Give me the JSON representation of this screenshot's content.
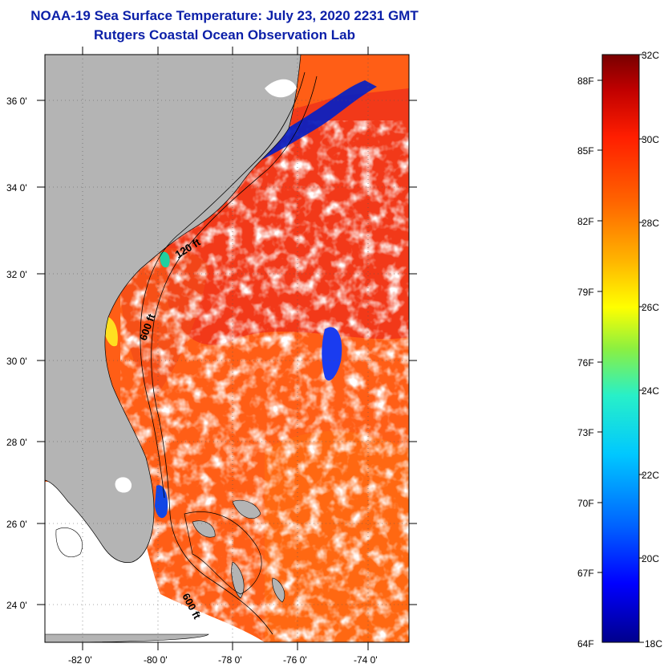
{
  "header": {
    "title": "NOAA-19 Sea Surface Temperature:  July 23, 2020 2231 GMT",
    "subtitle": "Rutgers Coastal Ocean Observation Lab"
  },
  "map": {
    "lat_labels": [
      "36 0'",
      "34 0'",
      "32 0'",
      "30 0'",
      "28 0'",
      "26 0'",
      "24 0'"
    ],
    "lon_labels": [
      "-82 0'",
      "-80 0'",
      "-78 0'",
      "-76 0'",
      "-74 0'"
    ],
    "isobath_labels": [
      "120 ft",
      "600 ft",
      "600 ft"
    ],
    "colors": {
      "land": "#b4b4b4",
      "ocean_warm": "#ff5a14",
      "ocean_hot": "#f0321a",
      "cloud": "#ffffff",
      "frame": "#000000"
    }
  },
  "colorbar": {
    "fahrenheit_labels": [
      "88F",
      "85F",
      "82F",
      "79F",
      "76F",
      "73F",
      "70F",
      "67F",
      "64F"
    ],
    "celsius_labels": [
      "32C",
      "30C",
      "28C",
      "26C",
      "24C",
      "22C",
      "20C",
      "18C"
    ],
    "range_c": [
      18,
      32
    ],
    "stops": [
      "#00008c",
      "#0000ff",
      "#0064ff",
      "#00c8ff",
      "#28f0c8",
      "#8cf040",
      "#ffff00",
      "#ffb400",
      "#ff6400",
      "#ff1e00",
      "#c00000",
      "#780000"
    ]
  }
}
